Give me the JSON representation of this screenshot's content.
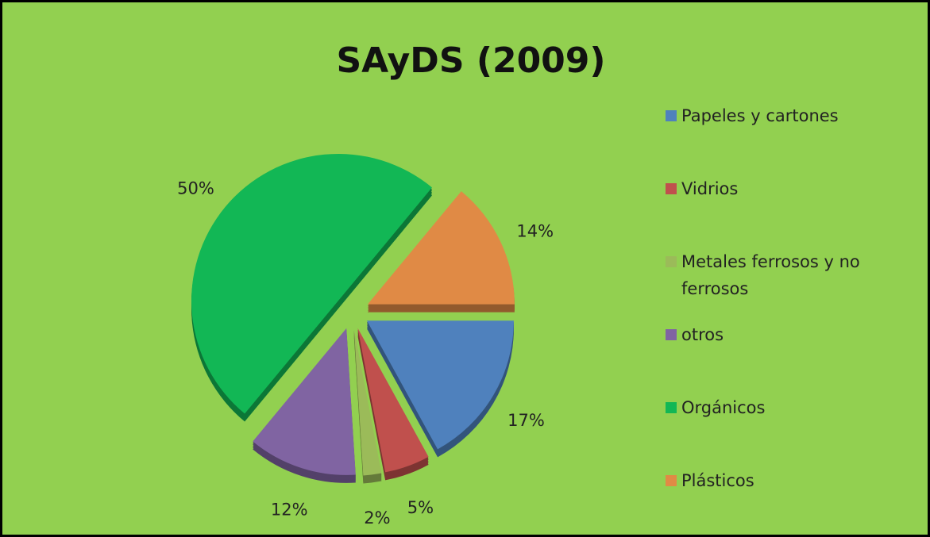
{
  "chart_data": {
    "type": "pie",
    "title": "SAyDS (2009)",
    "categories": [
      "Papeles y cartones",
      "Vidrios",
      "Metales ferrosos y no ferrosos",
      "otros",
      "Orgánicos",
      "Plásticos"
    ],
    "values": [
      17,
      5,
      2,
      12,
      50,
      14
    ],
    "value_labels": [
      "17%",
      "5%",
      "2%",
      "12%",
      "50%",
      "14%"
    ],
    "colors": [
      "#4f81bd",
      "#c0504d",
      "#9bbb59",
      "#8064a2",
      "#12b755",
      "#e08a45"
    ],
    "legend": "right"
  }
}
